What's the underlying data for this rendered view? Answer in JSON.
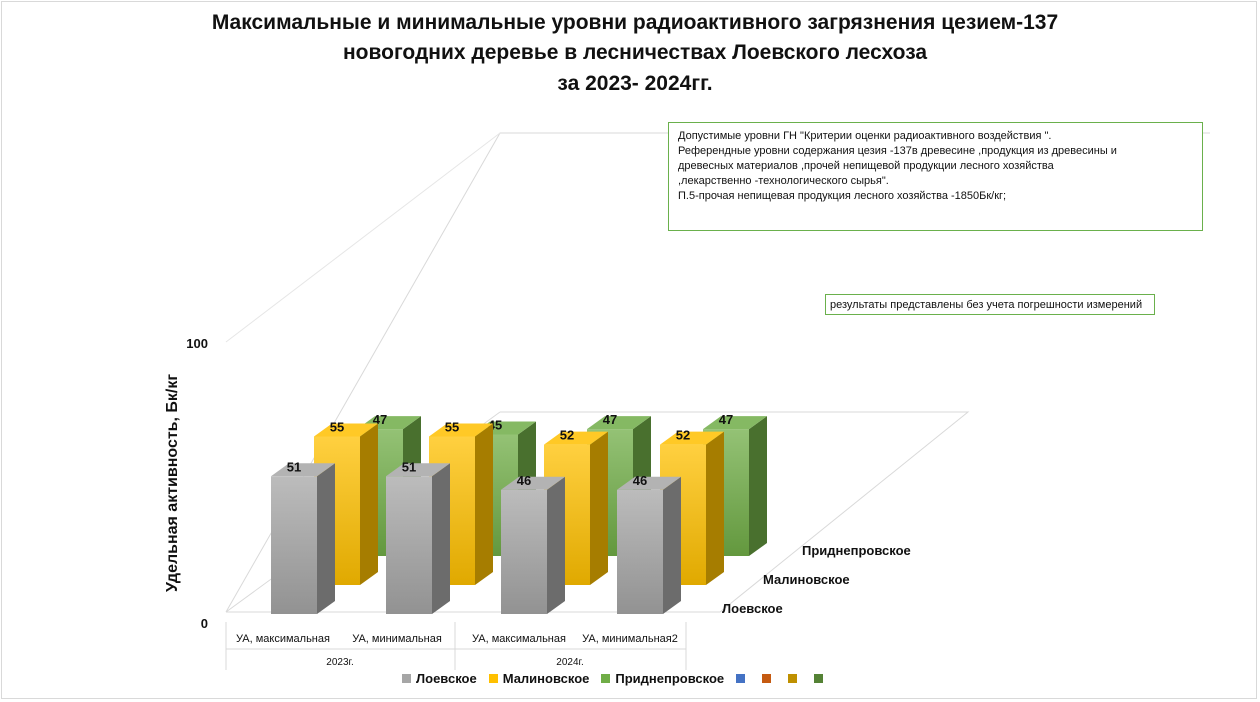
{
  "chart_data": {
    "type": "bar",
    "title": "Максимальные и минимальные уровни радиоактивного загрязнения цезием-137\nновогодних деревье в лесничествах Лоевского лесхоза\nза 2023- 2024гг.",
    "ylabel": "Удельная активность, Бк/кг",
    "yticks": [
      "0",
      "100"
    ],
    "ylim": [
      0,
      100
    ],
    "categories": [
      "УА, максимальная",
      "УА, минимальная",
      "УА, максимальная",
      "УА, минимальная2"
    ],
    "groups": [
      "2023г.",
      "2024г."
    ],
    "depth_labels": [
      "Приднепровское",
      "Малиновское",
      "Лоевское"
    ],
    "series": [
      {
        "name": "Лоевское",
        "values": [
          51,
          51,
          46,
          46
        ],
        "color": "#a6a6a6"
      },
      {
        "name": "Малиновское",
        "values": [
          55,
          55,
          52,
          52
        ],
        "color": "#ffc000"
      },
      {
        "name": "Приднепровское",
        "values": [
          47,
          45,
          47,
          47
        ],
        "color": "#70ad47"
      }
    ],
    "extra_legend_colors": [
      "#4472c4",
      "#c55a11",
      "#bf9000",
      "#548235"
    ],
    "legend_position": "bottom",
    "note_main": [
      "Допустимые уровни ГН \"Критерии оценки радиоактивного  воздействия  \".",
      "Референдные уровни содержания цезия -137в древесине ,продукция  из древесины и",
      "древесных материалов  ,прочей непищевой продукции лесного хозяйства",
      ",лекарственно -технологического  сырья\".",
      "П.5-прочая непищевая  продукция лесного хозяйства -1850Бк/кг;"
    ],
    "note_small": "результаты представлены без учета погрешности  измерений"
  }
}
